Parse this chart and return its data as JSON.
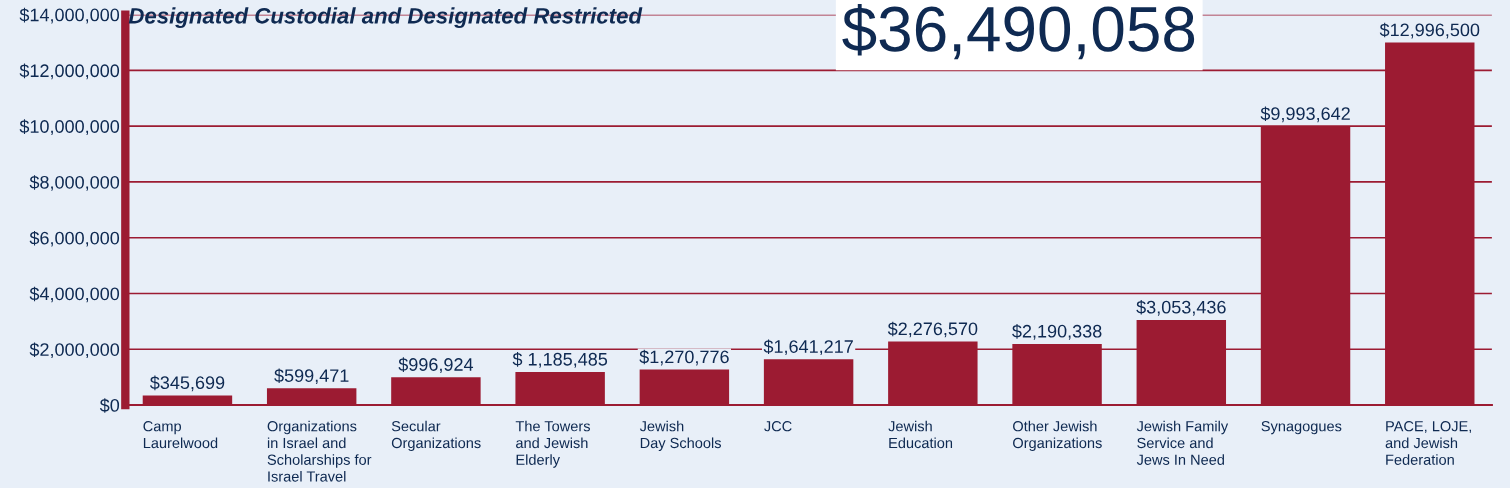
{
  "chart_data": {
    "type": "bar",
    "title": "Designated Custodial and Designated Restricted",
    "annotations": [
      "$36,490,058"
    ],
    "categories": [
      "Camp\nLaurelwood",
      "Organizations\nin Israel and\nScholarships for\nIsrael Travel",
      "Secular\nOrganizations",
      "The Towers\nand Jewish\nElderly",
      "Jewish\nDay Schools",
      "JCC",
      "Jewish\nEducation",
      "Other Jewish\nOrganizations",
      "Jewish Family\nService and\nJews In Need",
      "Synagogues",
      "PACE, LOJE,\nand Jewish\nFederation"
    ],
    "values": [
      345699,
      599471,
      996924,
      1185485,
      1270776,
      1641217,
      2276570,
      2190338,
      3053436,
      9993642,
      12996500
    ],
    "value_labels": [
      "$345,699",
      "$599,471",
      "$996,924",
      "$ 1,185,485",
      "$1,270,776",
      "$1,641,217",
      "$2,276,570",
      "$2,190,338",
      "$3,053,436",
      "$9,993,642",
      "$12,996,500"
    ],
    "color": "#9c1b32",
    "ylim": [
      0,
      14000000
    ],
    "yticks": [
      {
        "value": 0,
        "label": "$0"
      },
      {
        "value": 2000000,
        "label": "$2,000,000"
      },
      {
        "value": 4000000,
        "label": "$4,000,000"
      },
      {
        "value": 6000000,
        "label": "$6,000,000"
      },
      {
        "value": 8000000,
        "label": "$8,000,000"
      },
      {
        "value": 10000000,
        "label": "$10,000,000"
      },
      {
        "value": 12000000,
        "label": "$12,000,000"
      },
      {
        "value": 14000000,
        "label": "$14,000,000"
      }
    ],
    "grid": "y"
  }
}
